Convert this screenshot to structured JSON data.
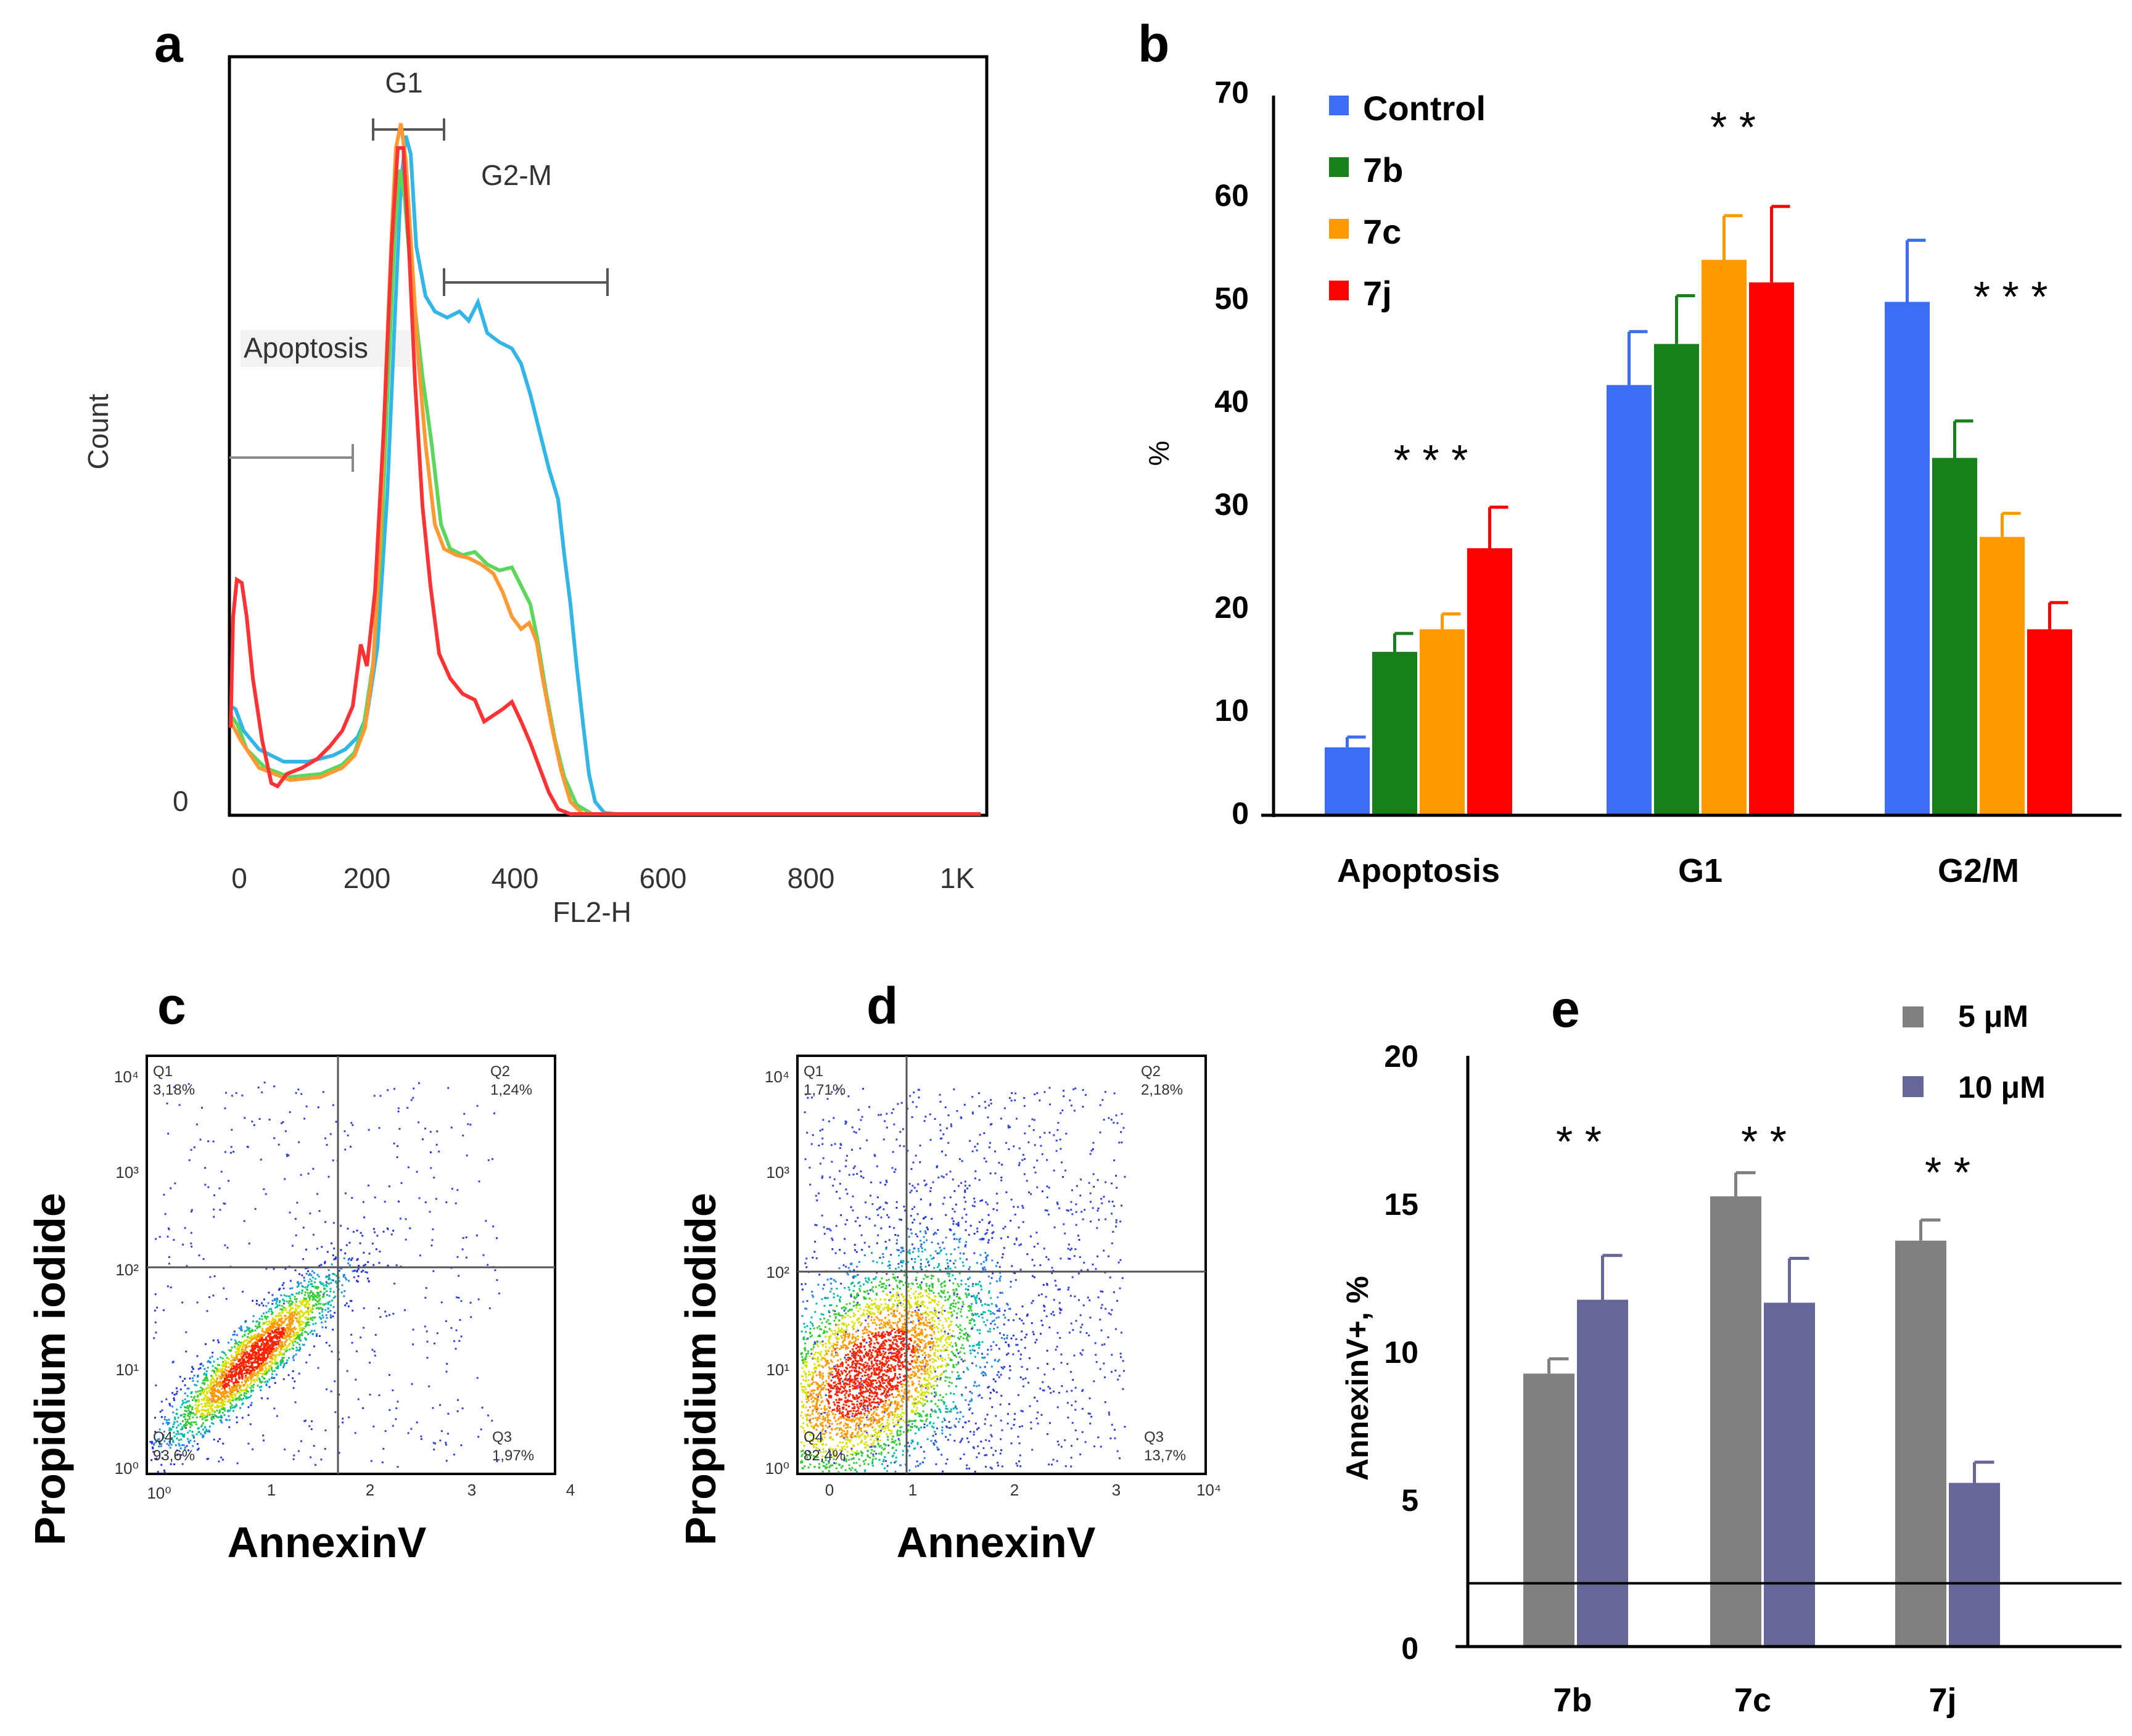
{
  "panels": {
    "a": {
      "label": "a",
      "xlabel": "FL2-H",
      "ylabel": "Count",
      "y_zero_label": "0",
      "x_ticks": [
        "0",
        "200",
        "400",
        "600",
        "800",
        "1K"
      ],
      "gates": {
        "g1": "G1",
        "g2m": "G2-M",
        "apoptosis": "Apoptosis"
      },
      "colors": {
        "control": "#33b5e5",
        "7b": "#5cd65c",
        "7c": "#ff9933",
        "7j": "#ff3333"
      }
    },
    "c": {
      "label": "c",
      "ylabel": "Propidium iodide",
      "xlabel": "AnnexinV",
      "y_ticks": [
        "10⁴",
        "10³",
        "10²",
        "10¹",
        "10⁰"
      ],
      "x_ticks": [
        "10⁰",
        "1",
        "2",
        "3",
        "4"
      ],
      "quadrants": {
        "q1": {
          "name": "Q1",
          "pct": "3,18%"
        },
        "q2": {
          "name": "Q2",
          "pct": "1,24%"
        },
        "q3": {
          "name": "Q3",
          "pct": "1,97%"
        },
        "q4": {
          "name": "Q4",
          "pct": "93,6%"
        }
      }
    },
    "d": {
      "label": "d",
      "ylabel": "Propidium iodide",
      "xlabel": "AnnexinV",
      "y_ticks": [
        "10⁴",
        "10³",
        "10²",
        "10¹",
        "10⁰"
      ],
      "x_ticks": [
        "0",
        "1",
        "2",
        "3",
        "10⁴"
      ],
      "quadrants": {
        "q1": {
          "name": "Q1",
          "pct": "1,71%"
        },
        "q2": {
          "name": "Q2",
          "pct": "2,18%"
        },
        "q3": {
          "name": "Q3",
          "pct": "13,7%"
        },
        "q4": {
          "name": "Q4",
          "pct": "82,4%"
        }
      }
    }
  },
  "chart_data": [
    {
      "panel": "b",
      "type": "bar",
      "label": "b",
      "ylabel": "%",
      "ylim": [
        0,
        70
      ],
      "y_ticks": [
        "0",
        "10",
        "20",
        "30",
        "40",
        "50",
        "60",
        "70"
      ],
      "categories": [
        "Apoptosis",
        "G1",
        "G2/M"
      ],
      "series": [
        {
          "name": "Control",
          "color": "#3b6ef5",
          "values": [
            6.5,
            41.8,
            49.9
          ],
          "errors": [
            1.0,
            5.2,
            6.0
          ]
        },
        {
          "name": "7b",
          "color": "#17801b",
          "values": [
            15.8,
            45.8,
            34.7
          ],
          "errors": [
            1.8,
            4.7,
            3.6
          ]
        },
        {
          "name": "7c",
          "color": "#ff9a00",
          "values": [
            18.0,
            54.0,
            27.0
          ],
          "errors": [
            1.5,
            4.3,
            2.3
          ]
        },
        {
          "name": "7j",
          "color": "#ff0000",
          "values": [
            25.9,
            51.8,
            18.0
          ],
          "errors": [
            4.0,
            7.4,
            2.6
          ]
        }
      ],
      "annotations": [
        "* * *",
        "* *",
        "* * *"
      ]
    },
    {
      "panel": "e",
      "type": "bar",
      "label": "e",
      "ylabel": "AnnexinV+, %",
      "ylim": [
        0,
        20
      ],
      "y_ticks": [
        "0",
        "5",
        "10",
        "15",
        "20"
      ],
      "categories": [
        "7b",
        "7c",
        "7j"
      ],
      "series": [
        {
          "name": "5 μM",
          "color": "#808080",
          "values": [
            9.2,
            15.2,
            13.7
          ],
          "errors": [
            0.5,
            0.8,
            0.7
          ]
        },
        {
          "name": "10 μM",
          "color": "#666699",
          "values": [
            11.7,
            11.6,
            5.5
          ],
          "errors": [
            1.5,
            1.5,
            0.7
          ]
        }
      ],
      "reference_line": 2.1,
      "annotations": [
        "* *",
        "* *",
        "* *"
      ]
    }
  ]
}
